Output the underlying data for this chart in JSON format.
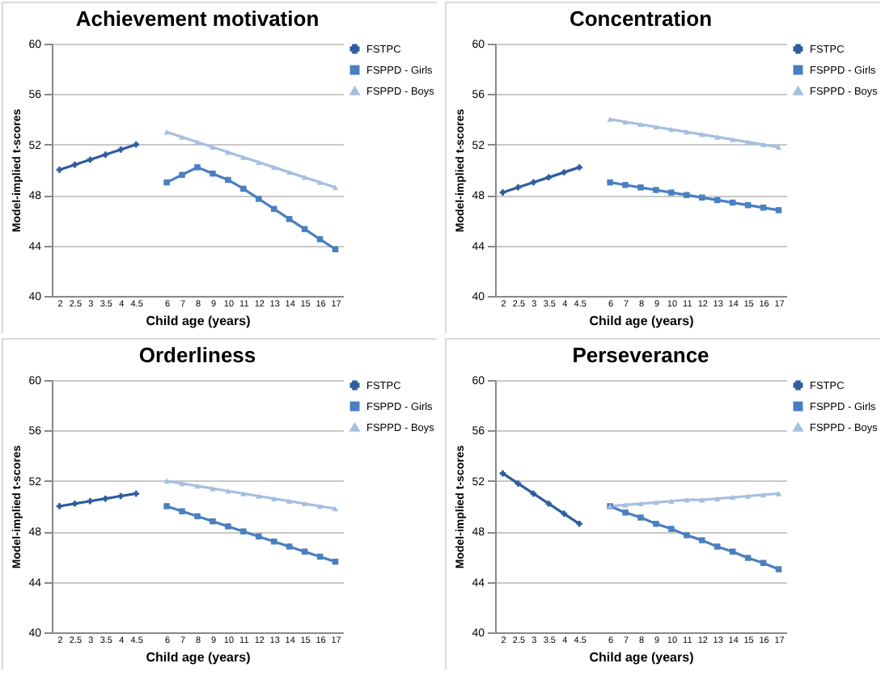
{
  "chart_data": [
    {
      "type": "line",
      "title": "Achievement motivation",
      "xlabel": "Child age (years)",
      "ylabel": "Model-implied t-scores",
      "categories": [
        "2",
        "2.5",
        "3",
        "3.5",
        "4",
        "4.5",
        null,
        "6",
        "7",
        "8",
        "9",
        "10",
        "11",
        "12",
        "13",
        "14",
        "15",
        "16",
        "17"
      ],
      "ylim": [
        40,
        60
      ],
      "yticks": [
        40,
        44,
        48,
        52,
        56,
        60
      ],
      "grid": "y",
      "legend": "right",
      "series": [
        {
          "name": "FSTPC",
          "color": "#2e5c9e",
          "marker": "cross",
          "values": [
            50.0,
            50.4,
            50.8,
            51.2,
            51.6,
            52.0,
            null,
            null,
            null,
            null,
            null,
            null,
            null,
            null,
            null,
            null,
            null,
            null,
            null
          ]
        },
        {
          "name": "FSPPD - Girls",
          "color": "#4a7fc1",
          "marker": "square",
          "values": [
            null,
            null,
            null,
            null,
            null,
            null,
            null,
            49.0,
            49.6,
            50.2,
            49.7,
            49.2,
            48.5,
            47.7,
            46.9,
            46.1,
            45.3,
            44.5,
            43.7
          ]
        },
        {
          "name": "FSPPD - Boys",
          "color": "#a6bfe0",
          "marker": "triangle",
          "values": [
            null,
            null,
            null,
            null,
            null,
            null,
            null,
            53.0,
            52.6,
            52.2,
            51.8,
            51.4,
            51.0,
            50.6,
            50.2,
            49.8,
            49.4,
            49.0,
            48.6
          ]
        }
      ]
    },
    {
      "type": "line",
      "title": "Concentration",
      "xlabel": "Child age (years)",
      "ylabel": "Model-implied t-scores",
      "categories": [
        "2",
        "2.5",
        "3",
        "3.5",
        "4",
        "4.5",
        null,
        "6",
        "7",
        "8",
        "9",
        "10",
        "11",
        "12",
        "13",
        "14",
        "15",
        "16",
        "17"
      ],
      "ylim": [
        40,
        60
      ],
      "yticks": [
        40,
        44,
        48,
        52,
        56,
        60
      ],
      "grid": "y",
      "legend": "right",
      "series": [
        {
          "name": "FSTPC",
          "color": "#2e5c9e",
          "marker": "cross",
          "values": [
            48.2,
            48.6,
            49.0,
            49.4,
            49.8,
            50.2,
            null,
            null,
            null,
            null,
            null,
            null,
            null,
            null,
            null,
            null,
            null,
            null,
            null
          ]
        },
        {
          "name": "FSPPD - Girls",
          "color": "#4a7fc1",
          "marker": "square",
          "values": [
            null,
            null,
            null,
            null,
            null,
            null,
            null,
            49.0,
            48.8,
            48.6,
            48.4,
            48.2,
            48.0,
            47.8,
            47.6,
            47.4,
            47.2,
            47.0,
            46.8
          ]
        },
        {
          "name": "FSPPD - Boys",
          "color": "#a6bfe0",
          "marker": "triangle",
          "values": [
            null,
            null,
            null,
            null,
            null,
            null,
            null,
            54.0,
            53.8,
            53.6,
            53.4,
            53.2,
            53.0,
            52.8,
            52.6,
            52.4,
            52.2,
            52.0,
            51.8
          ]
        }
      ]
    },
    {
      "type": "line",
      "title": "Orderliness",
      "xlabel": "Child age (years)",
      "ylabel": "Model-implied t-scores",
      "categories": [
        "2",
        "2.5",
        "3",
        "3.5",
        "4",
        "4.5",
        null,
        "6",
        "7",
        "8",
        "9",
        "10",
        "11",
        "12",
        "13",
        "14",
        "15",
        "16",
        "17"
      ],
      "ylim": [
        40,
        60
      ],
      "yticks": [
        40,
        44,
        48,
        52,
        56,
        60
      ],
      "grid": "y",
      "legend": "right",
      "series": [
        {
          "name": "FSTPC",
          "color": "#2e5c9e",
          "marker": "cross",
          "values": [
            50.0,
            50.2,
            50.4,
            50.6,
            50.8,
            51.0,
            null,
            null,
            null,
            null,
            null,
            null,
            null,
            null,
            null,
            null,
            null,
            null,
            null
          ]
        },
        {
          "name": "FSPPD - Girls",
          "color": "#4a7fc1",
          "marker": "square",
          "values": [
            null,
            null,
            null,
            null,
            null,
            null,
            null,
            50.0,
            49.6,
            49.2,
            48.8,
            48.4,
            48.0,
            47.6,
            47.2,
            46.8,
            46.4,
            46.0,
            45.6
          ]
        },
        {
          "name": "FSPPD - Boys",
          "color": "#a6bfe0",
          "marker": "triangle",
          "values": [
            null,
            null,
            null,
            null,
            null,
            null,
            null,
            52.0,
            51.8,
            51.6,
            51.4,
            51.2,
            51.0,
            50.8,
            50.6,
            50.4,
            50.2,
            50.0,
            49.8
          ]
        }
      ]
    },
    {
      "type": "line",
      "title": "Perseverance",
      "xlabel": "Child age (years)",
      "ylabel": "Model-implied t-scores",
      "categories": [
        "2",
        "2.5",
        "3",
        "3.5",
        "4",
        "4.5",
        null,
        "6",
        "7",
        "8",
        "9",
        "10",
        "11",
        "12",
        "13",
        "14",
        "15",
        "16",
        "17"
      ],
      "ylim": [
        40,
        60
      ],
      "yticks": [
        40,
        44,
        48,
        52,
        56,
        60
      ],
      "grid": "y",
      "legend": "right",
      "series": [
        {
          "name": "FSTPC",
          "color": "#2e5c9e",
          "marker": "cross",
          "values": [
            52.6,
            51.8,
            51.0,
            50.2,
            49.4,
            48.6,
            null,
            null,
            null,
            null,
            null,
            null,
            null,
            null,
            null,
            null,
            null,
            null,
            null
          ]
        },
        {
          "name": "FSPPD - Girls",
          "color": "#4a7fc1",
          "marker": "square",
          "values": [
            null,
            null,
            null,
            null,
            null,
            null,
            null,
            50.0,
            49.5,
            49.1,
            48.6,
            48.2,
            47.7,
            47.3,
            46.8,
            46.4,
            45.9,
            45.5,
            45.0
          ]
        },
        {
          "name": "FSPPD - Boys",
          "color": "#a6bfe0",
          "marker": "triangle",
          "values": [
            null,
            null,
            null,
            null,
            null,
            null,
            null,
            50.0,
            50.1,
            50.2,
            50.3,
            50.4,
            50.5,
            50.5,
            50.6,
            50.7,
            50.8,
            50.9,
            51.0
          ]
        }
      ]
    }
  ]
}
